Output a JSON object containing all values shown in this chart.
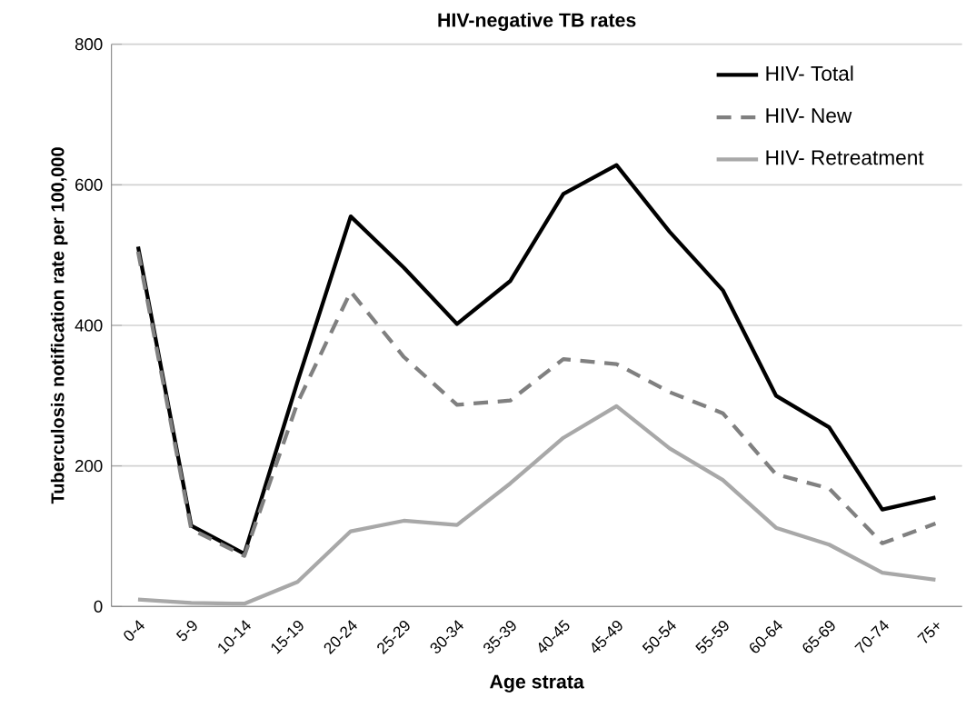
{
  "chart_data": {
    "type": "line",
    "title": "HIV-negative TB rates",
    "xlabel": "Age strata",
    "ylabel": "Tuberculosis notification rate per 100,000",
    "categories": [
      "0-4",
      "5-9",
      "10-14",
      "15-19",
      "20-24",
      "25-29",
      "30-34",
      "35-39",
      "40-45",
      "45-49",
      "50-54",
      "55-59",
      "60-64",
      "65-69",
      "70-74",
      "75+"
    ],
    "series": [
      {
        "name": "HIV- Total",
        "color": "#000000",
        "line_style": "solid",
        "values": [
          512,
          115,
          75,
          320,
          555,
          482,
          402,
          463,
          587,
          628,
          533,
          450,
          300,
          255,
          138,
          155
        ]
      },
      {
        "name": "HIV- New",
        "color": "#808080",
        "line_style": "dashed",
        "values": [
          505,
          110,
          72,
          290,
          448,
          355,
          287,
          293,
          352,
          345,
          305,
          275,
          188,
          168,
          90,
          118
        ]
      },
      {
        "name": "HIV- Retreatment",
        "color": "#a8a8a8",
        "line_style": "solid",
        "values": [
          10,
          5,
          4,
          35,
          107,
          122,
          116,
          175,
          240,
          285,
          225,
          180,
          112,
          88,
          48,
          38
        ]
      }
    ],
    "ylim": [
      0,
      800
    ],
    "yticks": [
      0,
      200,
      400,
      600,
      800
    ],
    "grid": "y",
    "legend": "top right",
    "marker": "none"
  }
}
